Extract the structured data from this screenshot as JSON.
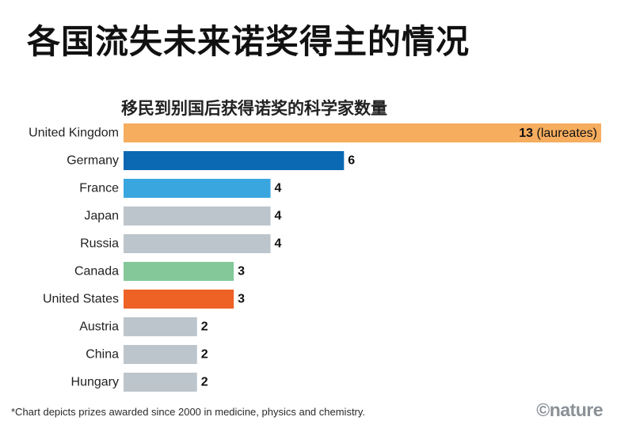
{
  "page": {
    "title": "各国流失未来诺奖得主的情况",
    "footnote": "*Chart depicts prizes awarded since 2000 in medicine, physics and chemistry.",
    "brand": "©nature"
  },
  "chart_data": {
    "type": "bar",
    "orientation": "horizontal",
    "title": "移民到别国后获得诺奖的科学家数量",
    "unit_label": "(laureates)",
    "categories": [
      "United Kingdom",
      "Germany",
      "France",
      "Japan",
      "Russia",
      "Canada",
      "United States",
      "Austria",
      "China",
      "Hungary"
    ],
    "values": [
      13,
      6,
      4,
      4,
      4,
      3,
      3,
      2,
      2,
      2
    ],
    "colors": [
      "#f6ad5e",
      "#0a69b2",
      "#3aa6e0",
      "#bdc5cc",
      "#bdc5cc",
      "#84c89a",
      "#ee6226",
      "#bdc5cc",
      "#bdc5cc",
      "#bdc5cc"
    ],
    "xlim": [
      0,
      13
    ],
    "grid": false,
    "legend": "none"
  }
}
